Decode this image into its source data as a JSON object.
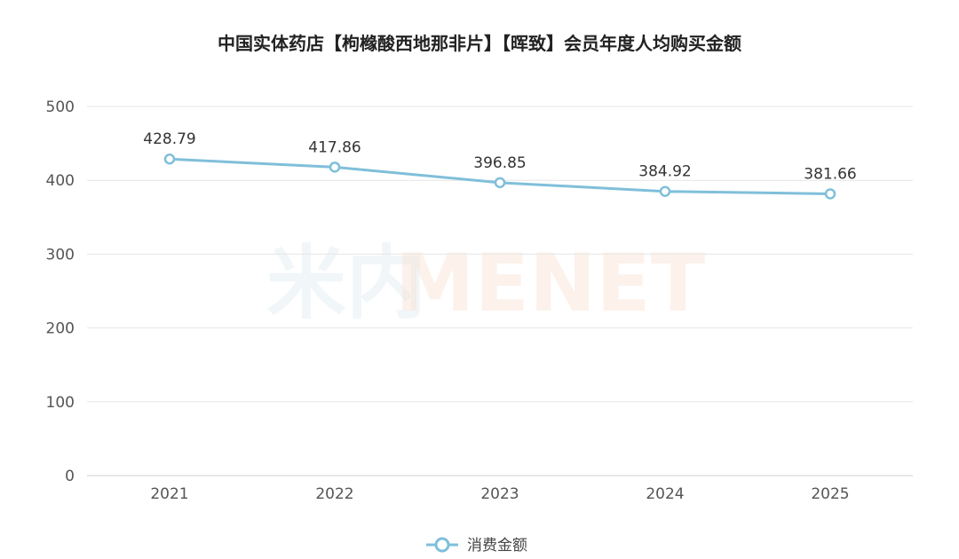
{
  "watermark": {
    "part_a": "米内",
    "part_b": "MENET"
  },
  "chart_data": {
    "type": "line",
    "title": "中国实体药店【枸橼酸西地那非片】【晖致】会员年度人均购买金额",
    "xlabel": "",
    "ylabel": "",
    "categories": [
      "2021",
      "2022",
      "2023",
      "2024",
      "2025"
    ],
    "series": [
      {
        "name": "消费金额",
        "values": [
          428.79,
          417.86,
          396.85,
          384.92,
          381.66
        ],
        "color": "#7fbfda"
      }
    ],
    "ylim": [
      0,
      500
    ],
    "yticks": [
      0,
      100,
      200,
      300,
      400,
      500
    ],
    "grid": true,
    "legend": "bottom-center"
  }
}
